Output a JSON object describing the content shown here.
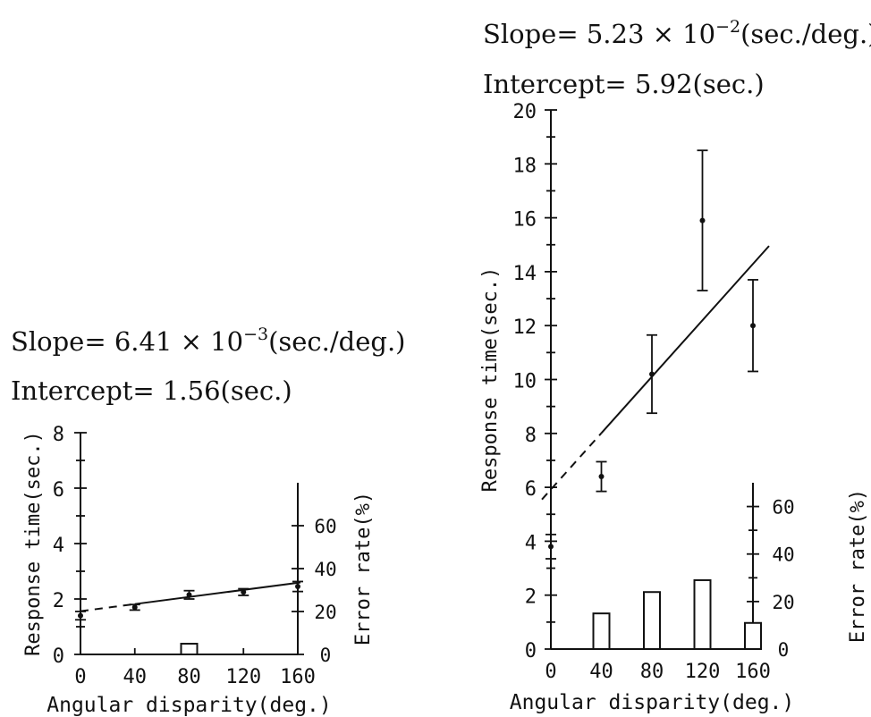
{
  "chart_data": [
    {
      "type": "line",
      "slope_text": {
        "prefix": "Slope= 6.41 × 10",
        "exponent": "−3",
        "suffix": "(sec./deg.)"
      },
      "intercept_text": "Intercept= 1.56(sec.)",
      "xlabel": "Angular disparity(deg.)",
      "ylabel": "Response time(sec.)",
      "y2label": "Error rate(%)",
      "xlim": [
        0,
        160
      ],
      "ylim": [
        0,
        8
      ],
      "y2lim": [
        0,
        80
      ],
      "x_ticks": [
        0,
        40,
        80,
        120,
        160
      ],
      "y_ticks": [
        0,
        2,
        4,
        6,
        8
      ],
      "y2_ticks": [
        0,
        20,
        40,
        60
      ],
      "x_tick_labels": [
        "0",
        "40",
        "80",
        "120",
        "160"
      ],
      "y_tick_labels": [
        "0",
        "2",
        "4",
        "6",
        "8"
      ],
      "y2_tick_labels": [
        "0",
        "20",
        "40",
        "60"
      ],
      "fit": {
        "slope": 0.00641,
        "intercept": 1.56,
        "dashed_until": 40
      },
      "response_time": {
        "x": [
          0,
          40,
          80,
          120,
          160
        ],
        "mean": [
          1.4,
          1.7,
          2.15,
          2.25,
          2.45
        ],
        "error": [
          0.15,
          0.1,
          0.15,
          0.12,
          0.18
        ]
      },
      "error_rate": {
        "x": [
          0,
          40,
          80,
          120,
          160
        ],
        "values": [
          0,
          0,
          5,
          0,
          0
        ]
      }
    },
    {
      "type": "line",
      "slope_text": {
        "prefix": "Slope= 5.23 × 10",
        "exponent": "−2",
        "suffix": "(sec./deg.)"
      },
      "intercept_text": "Intercept= 5.92(sec.)",
      "xlabel": "Angular disparity(deg.)",
      "ylabel": "Response time(sec.)",
      "y2label": "Error rate(%)",
      "xlim": [
        0,
        160
      ],
      "ylim": [
        0,
        20
      ],
      "y2lim": [
        0,
        70
      ],
      "x_ticks": [
        0,
        40,
        80,
        120,
        160
      ],
      "y_ticks": [
        0,
        2,
        4,
        6,
        8,
        10,
        12,
        14,
        16,
        18,
        20
      ],
      "y2_ticks": [
        0,
        20,
        40,
        60
      ],
      "x_tick_labels": [
        "0",
        "40",
        "80",
        "120",
        "160"
      ],
      "y_tick_labels": [
        "0",
        "2",
        "4",
        "6",
        "8",
        "10",
        "12",
        "14",
        "16",
        "18",
        "20"
      ],
      "y2_tick_labels": [
        "0",
        "20",
        "40",
        "60"
      ],
      "fit": {
        "slope": 0.0523,
        "intercept": 5.92,
        "dashed_until": 40
      },
      "response_time": {
        "x": [
          0,
          40,
          80,
          120,
          160
        ],
        "mean": [
          3.8,
          6.4,
          10.2,
          15.9,
          12.0
        ],
        "error": [
          0.45,
          0.55,
          1.45,
          2.6,
          1.7
        ]
      },
      "error_rate": {
        "x": [
          0,
          40,
          80,
          120,
          160
        ],
        "values": [
          0,
          15,
          24,
          29,
          11
        ]
      }
    }
  ]
}
